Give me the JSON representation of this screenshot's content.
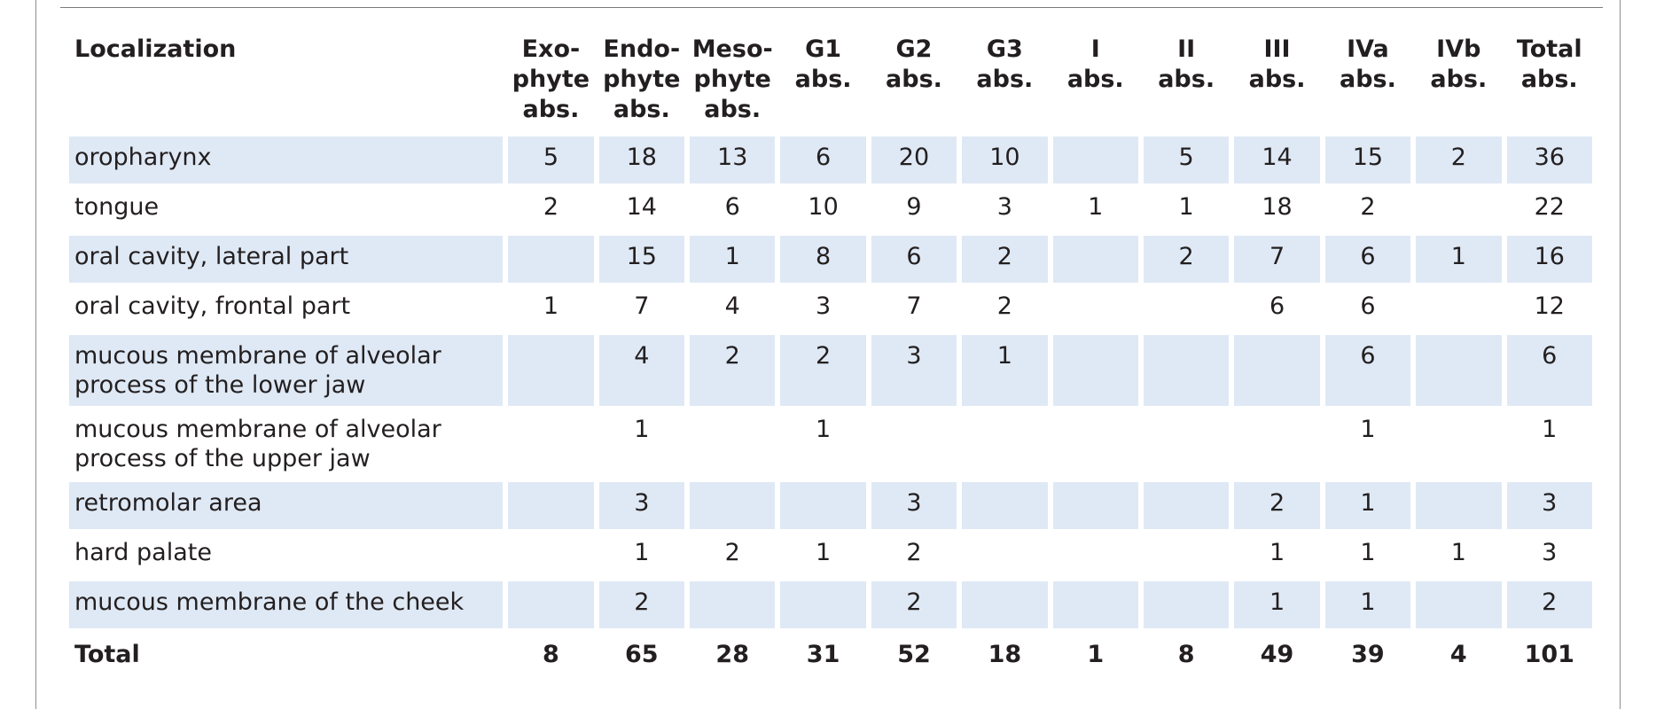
{
  "headers": [
    "Localization",
    "Exo-\nphyte\nabs.",
    "Endo-\nphyte\nabs.",
    "Meso-\nphyte\nabs.",
    "G1\nabs.",
    "G2\nabs.",
    "G3\nabs.",
    "I\nabs.",
    "II\nabs.",
    "III\nabs.",
    "IVa\nabs.",
    "IVb\nabs.",
    "Total\nabs."
  ],
  "rows": [
    {
      "label": "oropharynx",
      "values": [
        "5",
        "18",
        "13",
        "6",
        "20",
        "10",
        "",
        "5",
        "14",
        "15",
        "2",
        "36"
      ]
    },
    {
      "label": "tongue",
      "values": [
        "2",
        "14",
        "6",
        "10",
        "9",
        "3",
        "1",
        "1",
        "18",
        "2",
        "",
        "22"
      ]
    },
    {
      "label": "oral cavity, lateral part",
      "values": [
        "",
        "15",
        "1",
        "8",
        "6",
        "2",
        "",
        "2",
        "7",
        "6",
        "1",
        "16"
      ]
    },
    {
      "label": "oral cavity, frontal part",
      "values": [
        "1",
        "7",
        "4",
        "3",
        "7",
        "2",
        "",
        "",
        "6",
        "6",
        "",
        "12"
      ]
    },
    {
      "label": "mucous membrane of alveolar\nprocess of the lower jaw",
      "values": [
        "",
        "4",
        "2",
        "2",
        "3",
        "1",
        "",
        "",
        "",
        "6",
        "",
        "6"
      ]
    },
    {
      "label": "mucous membrane of alveolar\nprocess of the upper jaw",
      "values": [
        "",
        "1",
        "",
        "1",
        "",
        "",
        "",
        "",
        "",
        "1",
        "",
        "1"
      ]
    },
    {
      "label": "retromolar area",
      "values": [
        "",
        "3",
        "",
        "",
        "3",
        "",
        "",
        "",
        "2",
        "1",
        "",
        "3"
      ]
    },
    {
      "label": "hard palate",
      "values": [
        "",
        "1",
        "2",
        "1",
        "2",
        "",
        "",
        "",
        "1",
        "1",
        "1",
        "3"
      ]
    },
    {
      "label": "mucous membrane of the cheek",
      "values": [
        "",
        "2",
        "",
        "",
        "2",
        "",
        "",
        "",
        "1",
        "1",
        "",
        "2"
      ]
    }
  ],
  "total": {
    "label": "Total",
    "values": [
      "8",
      "65",
      "28",
      "31",
      "52",
      "18",
      "1",
      "8",
      "49",
      "39",
      "4",
      "101"
    ]
  },
  "colors": {
    "shade": "#dfe9f5",
    "rule": "#7a7a7a",
    "text": "#231f20"
  }
}
